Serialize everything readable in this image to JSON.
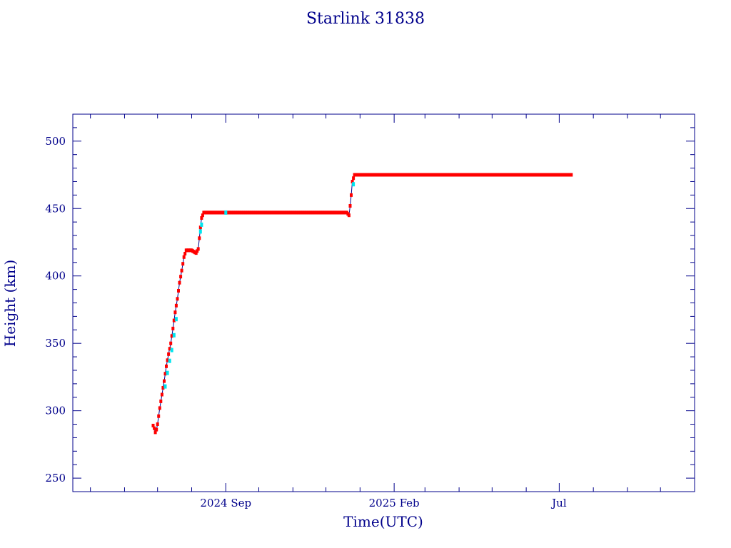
{
  "chart_data": {
    "type": "line",
    "title": "Starlink 31838",
    "xlabel": "Time(UTC)",
    "ylabel": "Height (km)",
    "x_tick_labels": [
      "2024 Sep",
      "2025 Feb",
      "Jul"
    ],
    "x_tick_dates": [
      "2024-09-01",
      "2025-02-01",
      "2025-07-01"
    ],
    "xlim": [
      "2024-04-15",
      "2025-11-01"
    ],
    "ylim": [
      240,
      520
    ],
    "y_ticks": [
      250,
      300,
      350,
      400,
      450,
      500
    ],
    "grid": false,
    "legend": "none",
    "colors": {
      "axes": "#00008b",
      "line": "#00008b",
      "points": "#ff0000",
      "highlight": "#00e5ee"
    },
    "series": [
      {
        "x": [
          "2024-06-27",
          "2024-06-28",
          "2024-06-29",
          "2024-06-30",
          "2024-07-01",
          "2024-07-02",
          "2024-07-03",
          "2024-07-05",
          "2024-07-07",
          "2024-07-09",
          "2024-07-11",
          "2024-07-13",
          "2024-07-15",
          "2024-07-17",
          "2024-07-19",
          "2024-07-21",
          "2024-07-23",
          "2024-07-25",
          "2024-07-27",
          "2024-07-28",
          "2024-08-01",
          "2024-08-05",
          "2024-08-07",
          "2024-08-08",
          "2024-08-09",
          "2024-08-10",
          "2024-08-12",
          "2024-08-15",
          "2024-09-01",
          "2024-10-01",
          "2024-11-01",
          "2024-12-01",
          "2024-12-20",
          "2024-12-22",
          "2024-12-23",
          "2024-12-24",
          "2024-12-25",
          "2024-12-27",
          "2025-01-01",
          "2025-03-01",
          "2025-05-01",
          "2025-07-01",
          "2025-07-12"
        ],
        "y": [
          289,
          287,
          284,
          286,
          290,
          296,
          302,
          312,
          322,
          333,
          342,
          350,
          361,
          373,
          383,
          395,
          404,
          414,
          419,
          419,
          419,
          417,
          420,
          428,
          436,
          443,
          447,
          447,
          447,
          447,
          447,
          447,
          447,
          445,
          452,
          460,
          470,
          475,
          475,
          475,
          475,
          475,
          475
        ]
      }
    ],
    "highlight_points": {
      "x": [
        "2024-07-08",
        "2024-07-10",
        "2024-07-12",
        "2024-07-14",
        "2024-07-16",
        "2024-07-18",
        "2024-08-09",
        "2024-08-10",
        "2024-09-01",
        "2024-12-26"
      ],
      "y": [
        318,
        328,
        337,
        345,
        356,
        368,
        433,
        438,
        447,
        468
      ]
    }
  }
}
